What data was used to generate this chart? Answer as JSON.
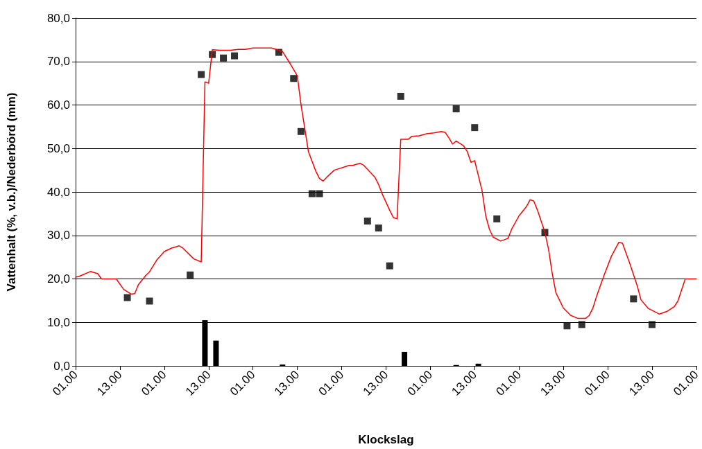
{
  "chart_data": {
    "type": "line",
    "xlabel": "Klockslag",
    "ylabel": "Vattenhalt (%, v.b.)/Nederbörd (mm)",
    "categories": [
      "01.00",
      null,
      null,
      null,
      null,
      null,
      null,
      null,
      null,
      null,
      null,
      null,
      "13.00",
      null,
      null,
      null,
      null,
      null,
      null,
      null,
      null,
      null,
      null,
      null,
      "01.00",
      null,
      null,
      null,
      null,
      null,
      null,
      null,
      null,
      null,
      null,
      null,
      "13.00",
      null,
      null,
      null,
      null,
      null,
      null,
      null,
      null,
      null,
      null,
      null,
      "01.00",
      null,
      null,
      null,
      null,
      null,
      null,
      null,
      null,
      null,
      null,
      null,
      "13.00",
      null,
      null,
      null,
      null,
      null,
      null,
      null,
      null,
      null,
      null,
      null,
      "01.00",
      null,
      null,
      null,
      null,
      null,
      null,
      null,
      null,
      null,
      null,
      null,
      "13.00",
      null,
      null,
      null,
      null,
      null,
      null,
      null,
      null,
      null,
      null,
      null,
      "01.00",
      null,
      null,
      null,
      null,
      null,
      null,
      null,
      null,
      null,
      null,
      null,
      "13.00",
      null,
      null,
      null,
      null,
      null,
      null,
      null,
      null,
      null,
      null,
      null,
      "01.00",
      null,
      null,
      null,
      null,
      null,
      null,
      null,
      null,
      null,
      null,
      null,
      "13.00",
      null,
      null,
      null,
      null,
      null,
      null,
      null,
      null,
      null,
      null,
      null,
      "01.00",
      null,
      null,
      null,
      null,
      null,
      null,
      null,
      null,
      null,
      null,
      null,
      "13.00",
      null,
      null,
      null,
      null,
      null,
      null,
      null,
      null,
      null,
      null,
      null,
      "01.00"
    ],
    "ylim": [
      0,
      80
    ],
    "yticks": [
      {
        "value": 0,
        "label": "0,0"
      },
      {
        "value": 10,
        "label": "10,0"
      },
      {
        "value": 20,
        "label": "20,0"
      },
      {
        "value": 30,
        "label": "30,0"
      },
      {
        "value": 40,
        "label": "40,0"
      },
      {
        "value": 50,
        "label": "50,0"
      },
      {
        "value": 60,
        "label": "60,0"
      },
      {
        "value": 70,
        "label": "70,0"
      },
      {
        "value": 80,
        "label": "80,0"
      }
    ],
    "grid": "y",
    "series": [
      {
        "type": "bar",
        "color": "#000000",
        "values": [
          null,
          null,
          null,
          null,
          null,
          null,
          null,
          null,
          null,
          null,
          null,
          null,
          null,
          null,
          null,
          null,
          null,
          null,
          null,
          null,
          null,
          null,
          null,
          null,
          null,
          null,
          null,
          null,
          null,
          null,
          null,
          null,
          null,
          null,
          null,
          10.5,
          null,
          null,
          5.8,
          null,
          null,
          null,
          null,
          null,
          null,
          null,
          null,
          null,
          null,
          null,
          null,
          null,
          null,
          null,
          null,
          null,
          0.3,
          null,
          null,
          null,
          null,
          null,
          null,
          null,
          null,
          null,
          null,
          null,
          null,
          null,
          null,
          null,
          null,
          null,
          null,
          null,
          null,
          null,
          null,
          null,
          null,
          null,
          null,
          null,
          null,
          null,
          null,
          null,
          null,
          3.2,
          null,
          null,
          null,
          null,
          null,
          null,
          null,
          null,
          null,
          null,
          null,
          null,
          null,
          0.2,
          null,
          null,
          null,
          null,
          null,
          0.5,
          null,
          null,
          null,
          null,
          null,
          null,
          null,
          null,
          null,
          null,
          null,
          null,
          null,
          null,
          null,
          null,
          null,
          null,
          null,
          null,
          null,
          null,
          null,
          null,
          null,
          null,
          null,
          null,
          null,
          null,
          null,
          null,
          null,
          null,
          null,
          null,
          null,
          null,
          null,
          null,
          null,
          null,
          null,
          null,
          null,
          null,
          null,
          null,
          null,
          null,
          null,
          null,
          null,
          null,
          null,
          null,
          null,
          null,
          null
        ]
      },
      {
        "color": "#ff0000",
        "marker": "none",
        "line_style": "solid",
        "values": [
          20.4,
          20.6,
          null,
          null,
          21.7,
          null,
          21.2,
          20,
          null,
          null,
          null,
          20,
          null,
          17.6,
          null,
          16.5,
          16.6,
          18.7,
          null,
          20.8,
          21.6,
          null,
          24.4,
          null,
          26.3,
          null,
          27.1,
          null,
          27.6,
          27.1,
          null,
          null,
          24.6,
          null,
          23.9,
          65.3,
          65,
          72.7,
          null,
          72.6,
          null,
          null,
          72.6,
          null,
          72.8,
          null,
          72.8,
          null,
          73.1,
          null,
          null,
          null,
          null,
          73.1,
          null,
          null,
          72.3,
          null,
          69.6,
          null,
          66.7,
          60.1,
          null,
          49.3,
          null,
          44.8,
          43.1,
          42.5,
          43.4,
          null,
          45,
          null,
          null,
          null,
          46.1,
          46.1,
          null,
          46.6,
          46.1,
          null,
          null,
          43.4,
          41.7,
          39.5,
          null,
          35.8,
          34.1,
          33.8,
          52.1,
          null,
          52.1,
          52.8,
          null,
          52.9,
          null,
          53.4,
          null,
          53.6,
          null,
          53.9,
          53.7,
          52.5,
          51,
          51.7,
          null,
          50.6,
          49.3,
          46.8,
          47.2,
          null,
          40.3,
          34.5,
          31.4,
          29.6,
          null,
          28.7,
          null,
          29.3,
          31.4,
          null,
          34.5,
          null,
          36.6,
          38.2,
          37.9,
          35.8,
          null,
          30.7,
          26.8,
          21.2,
          16.8,
          null,
          13.3,
          null,
          11.6,
          null,
          10.9,
          null,
          10.9,
          11.6,
          13.3,
          16,
          null,
          20.8,
          null,
          25.2,
          26.8,
          28.4,
          28.2,
          null,
          23.5,
          null,
          18.4,
          15.2,
          null,
          13.2,
          null,
          null,
          11.9,
          null,
          12.5,
          null,
          13.6,
          14.9,
          null,
          20,
          null,
          null,
          20
        ]
      },
      {
        "type": "scatter",
        "color": "#000000",
        "marker": "square",
        "values": [
          null,
          null,
          null,
          null,
          null,
          null,
          null,
          null,
          null,
          null,
          null,
          null,
          null,
          null,
          15.7,
          null,
          null,
          null,
          null,
          null,
          14.9,
          null,
          null,
          null,
          null,
          null,
          null,
          null,
          null,
          null,
          null,
          20.9,
          null,
          null,
          67,
          null,
          null,
          71.6,
          null,
          null,
          70.8,
          null,
          null,
          71.3,
          null,
          null,
          null,
          null,
          null,
          null,
          null,
          null,
          null,
          null,
          null,
          72.1,
          null,
          null,
          null,
          66.1,
          null,
          53.9,
          null,
          null,
          39.6,
          null,
          39.6,
          null,
          null,
          null,
          null,
          null,
          null,
          null,
          null,
          null,
          null,
          null,
          null,
          33.3,
          null,
          null,
          31.7,
          null,
          null,
          23,
          null,
          null,
          62,
          null,
          null,
          null,
          null,
          null,
          null,
          null,
          null,
          null,
          null,
          null,
          null,
          null,
          null,
          59.1,
          null,
          null,
          null,
          null,
          54.8,
          null,
          null,
          null,
          null,
          null,
          33.8,
          null,
          null,
          null,
          null,
          null,
          null,
          null,
          null,
          null,
          null,
          null,
          null,
          30.7,
          null,
          null,
          null,
          null,
          null,
          9.2,
          null,
          null,
          null,
          9.5,
          null,
          null,
          null,
          null,
          null,
          null,
          null,
          null,
          null,
          null,
          null,
          null,
          null,
          15.4,
          null,
          null,
          null,
          null,
          9.5,
          null,
          null,
          null,
          null,
          null,
          null,
          null,
          null,
          null,
          null,
          null,
          null
        ]
      }
    ]
  }
}
